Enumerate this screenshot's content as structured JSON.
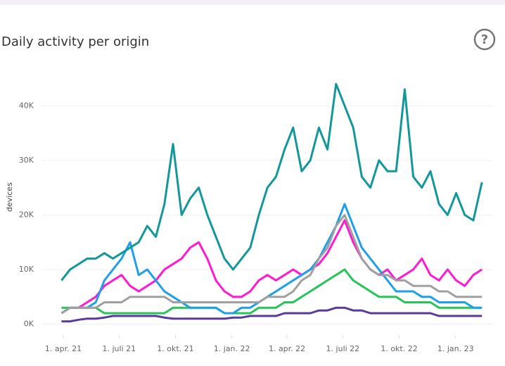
{
  "title": "Daily activity per origin",
  "help_icon": "?",
  "chart_data": {
    "type": "line",
    "y_label": "devices",
    "x": [
      "2021-03-29",
      "2021-04-12",
      "2021-04-26",
      "2021-05-10",
      "2021-05-24",
      "2021-06-07",
      "2021-06-21",
      "2021-07-05",
      "2021-07-19",
      "2021-08-02",
      "2021-08-16",
      "2021-08-30",
      "2021-09-13",
      "2021-09-27",
      "2021-10-11",
      "2021-10-25",
      "2021-11-08",
      "2021-11-22",
      "2021-12-06",
      "2021-12-20",
      "2022-01-03",
      "2022-01-17",
      "2022-01-31",
      "2022-02-14",
      "2022-02-28",
      "2022-03-14",
      "2022-03-28",
      "2022-04-11",
      "2022-04-25",
      "2022-05-09",
      "2022-05-23",
      "2022-06-06",
      "2022-06-20",
      "2022-07-04",
      "2022-07-18",
      "2022-08-01",
      "2022-08-15",
      "2022-08-29",
      "2022-09-12",
      "2022-09-26",
      "2022-10-10",
      "2022-10-24",
      "2022-11-07",
      "2022-11-21",
      "2022-12-05",
      "2022-12-19",
      "2023-01-02",
      "2023-01-16",
      "2023-01-30",
      "2023-02-13"
    ],
    "series": [
      {
        "color": "#5c3a9a",
        "values": [
          500,
          500,
          800,
          1000,
          1000,
          1200,
          1500,
          1500,
          1500,
          1500,
          1500,
          1500,
          1200,
          1000,
          1000,
          1000,
          1000,
          1000,
          1000,
          1000,
          1200,
          1200,
          1500,
          1500,
          1500,
          1500,
          2000,
          2000,
          2000,
          2000,
          2500,
          2500,
          3000,
          3000,
          2500,
          2500,
          2000,
          2000,
          2000,
          2000,
          2000,
          2000,
          2000,
          2000,
          1500,
          1500,
          1500,
          1500,
          1500,
          1500
        ]
      },
      {
        "color": "#27c45a",
        "values": [
          3000,
          3000,
          3000,
          3000,
          3000,
          2000,
          2000,
          2000,
          2000,
          2000,
          2000,
          2000,
          2000,
          3000,
          3000,
          3000,
          3000,
          3000,
          3000,
          2000,
          2000,
          2000,
          2000,
          3000,
          3000,
          3000,
          4000,
          4000,
          5000,
          6000,
          7000,
          8000,
          9000,
          10000,
          8000,
          7000,
          6000,
          5000,
          5000,
          5000,
          4000,
          4000,
          4000,
          4000,
          3000,
          3000,
          3000,
          3000,
          3000,
          3000
        ]
      },
      {
        "color": "#ff1ad0",
        "values": [
          2000,
          3000,
          3000,
          4000,
          5000,
          7000,
          8000,
          9000,
          7000,
          6000,
          7000,
          8000,
          10000,
          11000,
          12000,
          14000,
          15000,
          12000,
          8000,
          6000,
          5000,
          5000,
          6000,
          8000,
          9000,
          8000,
          9000,
          10000,
          9000,
          10000,
          11000,
          13000,
          16000,
          19000,
          15000,
          12000,
          10000,
          9000,
          10000,
          8000,
          9000,
          10000,
          12000,
          9000,
          8000,
          10000,
          8000,
          7000,
          9000,
          10000
        ]
      },
      {
        "color": "#1f9fe8",
        "values": [
          2000,
          3000,
          3000,
          3000,
          4000,
          8000,
          10000,
          12000,
          15000,
          9000,
          10000,
          8000,
          6000,
          5000,
          4000,
          3000,
          3000,
          3000,
          3000,
          2000,
          2000,
          3000,
          3000,
          4000,
          5000,
          6000,
          7000,
          8000,
          9000,
          10000,
          12000,
          15000,
          18000,
          22000,
          18000,
          14000,
          12000,
          10000,
          8000,
          6000,
          6000,
          6000,
          5000,
          5000,
          4000,
          4000,
          4000,
          4000,
          3000,
          3000
        ]
      },
      {
        "color": "#a0a0a0",
        "values": [
          2000,
          3000,
          3000,
          3000,
          3000,
          4000,
          4000,
          4000,
          5000,
          5000,
          5000,
          5000,
          5000,
          4000,
          4000,
          4000,
          4000,
          4000,
          4000,
          4000,
          4000,
          4000,
          4000,
          4000,
          5000,
          5000,
          5000,
          6000,
          8000,
          9000,
          12000,
          14000,
          18000,
          20000,
          16000,
          12000,
          10000,
          9000,
          9000,
          8000,
          8000,
          7000,
          7000,
          7000,
          6000,
          6000,
          5000,
          5000,
          5000,
          5000
        ]
      },
      {
        "color": "#12979a",
        "values": [
          8000,
          10000,
          11000,
          12000,
          12000,
          13000,
          12000,
          13000,
          14000,
          15000,
          18000,
          16000,
          22000,
          33000,
          20000,
          23000,
          25000,
          20000,
          16000,
          12000,
          10000,
          12000,
          14000,
          20000,
          25000,
          27000,
          32000,
          36000,
          28000,
          30000,
          36000,
          32000,
          44000,
          40000,
          36000,
          27000,
          25000,
          30000,
          28000,
          28000,
          43000,
          27000,
          25000,
          28000,
          22000,
          20000,
          24000,
          20000,
          19000,
          26000
        ]
      }
    ],
    "xlim": [
      "2021-02-25",
      "2023-03-02"
    ],
    "xticks": [
      {
        "value": "2021-04-01",
        "label": "1. apr. 21"
      },
      {
        "value": "2021-07-01",
        "label": "1. juli 21"
      },
      {
        "value": "2021-10-01",
        "label": "1. okt. 21"
      },
      {
        "value": "2022-01-01",
        "label": "1. jan. 22"
      },
      {
        "value": "2022-04-01",
        "label": "1. apr. 22"
      },
      {
        "value": "2022-07-01",
        "label": "1. juli 22"
      },
      {
        "value": "2022-10-01",
        "label": "1. okt. 22"
      },
      {
        "value": "2023-01-01",
        "label": "1. jan. 23"
      }
    ],
    "ylim": [
      -2000,
      47000
    ],
    "yticks": [
      {
        "value": 0,
        "label": "0K"
      },
      {
        "value": 10000,
        "label": "10K"
      },
      {
        "value": 20000,
        "label": "20K"
      },
      {
        "value": 30000,
        "label": "30K"
      },
      {
        "value": 40000,
        "label": "40K"
      }
    ],
    "grid": true
  }
}
